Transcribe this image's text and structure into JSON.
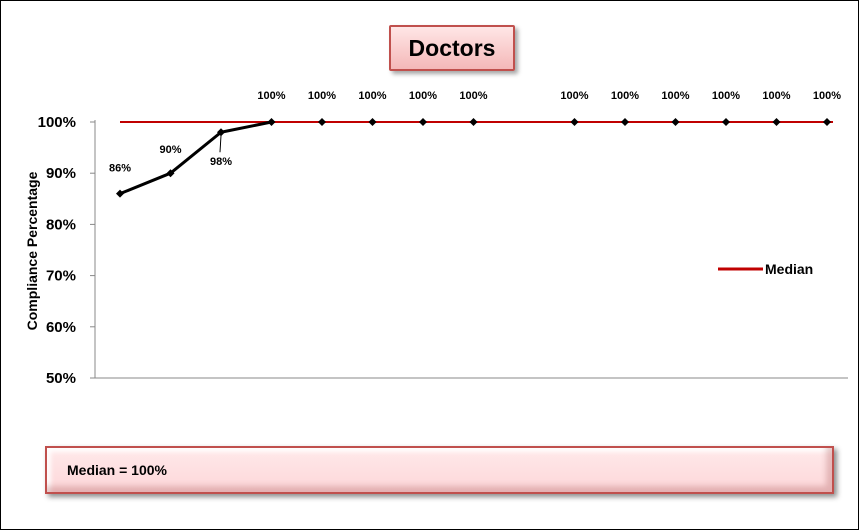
{
  "chart_data": {
    "type": "line",
    "title": "Doctors",
    "xlabel": "",
    "ylabel": "Compliance Percentage",
    "ylim": [
      50,
      100
    ],
    "yticks": [
      "50%",
      "60%",
      "70%",
      "80%",
      "90%",
      "100%"
    ],
    "x": [
      1,
      2,
      3,
      4,
      5,
      6,
      7,
      8,
      9,
      10,
      11,
      12,
      13,
      14,
      15
    ],
    "series": [
      {
        "name": "",
        "color": "#000000",
        "values": [
          86,
          90,
          98,
          100,
          100,
          100,
          100,
          100,
          null,
          100,
          100,
          100,
          100,
          100,
          100
        ],
        "labels": [
          "86%",
          "90%",
          "98%",
          "100%",
          "100%",
          "100%",
          "100%",
          "100%",
          null,
          "100%",
          "100%",
          "100%",
          "100%",
          "100%",
          "100%"
        ]
      },
      {
        "name": "Median",
        "color": "#c00000",
        "values": [
          100,
          100,
          100,
          100,
          100,
          100,
          100,
          100,
          100,
          100,
          100,
          100,
          100,
          100,
          100
        ]
      }
    ],
    "legend": "right",
    "grid": false
  },
  "median_box": {
    "text": "Median = 100%"
  }
}
